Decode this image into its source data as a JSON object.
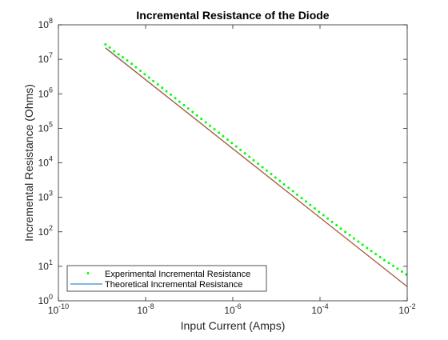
{
  "chart_data": {
    "type": "scatter",
    "title": "Incremental Resistance of the Diode",
    "xlabel": "Input Current (Amps)",
    "ylabel": "Incremental Resistance (Ohms)",
    "xscale": "log",
    "yscale": "log",
    "xlim": [
      1e-10,
      0.01
    ],
    "ylim": [
      1,
      100000000
    ],
    "grid": false,
    "legend_position": "bottom-left",
    "x_ticks": [
      {
        "value": 1e-10,
        "base": "10",
        "exp": "-10"
      },
      {
        "value": 1e-08,
        "base": "10",
        "exp": "-8"
      },
      {
        "value": 1e-06,
        "base": "10",
        "exp": "-6"
      },
      {
        "value": 0.0001,
        "base": "10",
        "exp": "-4"
      },
      {
        "value": 0.01,
        "base": "10",
        "exp": "-2"
      }
    ],
    "y_ticks": [
      {
        "value": 1,
        "base": "10",
        "exp": "0"
      },
      {
        "value": 10,
        "base": "10",
        "exp": "1"
      },
      {
        "value": 100,
        "base": "10",
        "exp": "2"
      },
      {
        "value": 1000,
        "base": "10",
        "exp": "3"
      },
      {
        "value": 10000,
        "base": "10",
        "exp": "4"
      },
      {
        "value": 100000,
        "base": "10",
        "exp": "5"
      },
      {
        "value": 1000000,
        "base": "10",
        "exp": "6"
      },
      {
        "value": 10000000,
        "base": "10",
        "exp": "7"
      },
      {
        "value": 100000000,
        "base": "10",
        "exp": "8"
      }
    ],
    "series": [
      {
        "name": "Experimental Incremental Resistance",
        "kind": "markers",
        "color": "#00ff00",
        "x": [
          1.2e-09,
          1.5e-09,
          1.9e-09,
          2.4e-09,
          3e-09,
          3.8e-09,
          4.8e-09,
          6e-09,
          7.6e-09,
          9.5e-09,
          1.2e-08,
          1.5e-08,
          1.9e-08,
          2.4e-08,
          3e-08,
          3.8e-08,
          4.8e-08,
          6e-08,
          7.6e-08,
          9.5e-08,
          1.2e-07,
          1.5e-07,
          1.9e-07,
          2.4e-07,
          3e-07,
          3.8e-07,
          4.8e-07,
          6e-07,
          7.6e-07,
          9.5e-07,
          1.2e-06,
          1.5e-06,
          1.9e-06,
          2.4e-06,
          3e-06,
          3.8e-06,
          4.8e-06,
          6e-06,
          7.6e-06,
          9.5e-06,
          1.2e-05,
          1.5e-05,
          1.9e-05,
          2.4e-05,
          3e-05,
          3.8e-05,
          4.8e-05,
          6e-05,
          7.6e-05,
          9.5e-05,
          0.00012,
          0.00015,
          0.00019,
          0.00024,
          0.0003,
          0.00038,
          0.00048,
          0.0006,
          0.00076,
          0.00095,
          0.0012,
          0.0015,
          0.0019,
          0.0024,
          0.003,
          0.0038,
          0.0048,
          0.006,
          0.0076,
          0.0095
        ],
        "y": [
          27000000,
          22000000,
          17000000,
          14000000,
          11500000,
          9300000,
          7400000,
          5900000,
          4650000,
          3700000,
          2950000,
          2350000,
          1870000,
          1490000,
          1180000,
          940000,
          745000,
          590000,
          470000,
          374000,
          296000,
          236000,
          187000,
          148500,
          118000,
          94000,
          74500,
          59000,
          47000,
          37400,
          29600,
          23700,
          18800,
          14900,
          11850,
          9400,
          7470,
          5930,
          4710,
          3750,
          2980,
          2370,
          1880,
          1500,
          1190,
          950,
          755,
          600,
          477,
          380,
          303,
          242,
          193,
          155,
          124,
          99,
          80,
          64,
          52,
          42,
          34,
          27.5,
          22.5,
          18.5,
          15,
          12.5,
          10.3,
          8.5,
          7,
          5.8
        ]
      },
      {
        "name": "Theoretical Incremental Resistance",
        "kind": "line",
        "color": "#0072bd",
        "x": [
          1.2e-09,
          0.01
        ],
        "y": [
          21600000,
          2.6
        ]
      }
    ],
    "overlay_line": {
      "color": "#d95319",
      "x": [
        1.2e-09,
        0.01
      ],
      "y": [
        21000000,
        2.55
      ]
    }
  }
}
